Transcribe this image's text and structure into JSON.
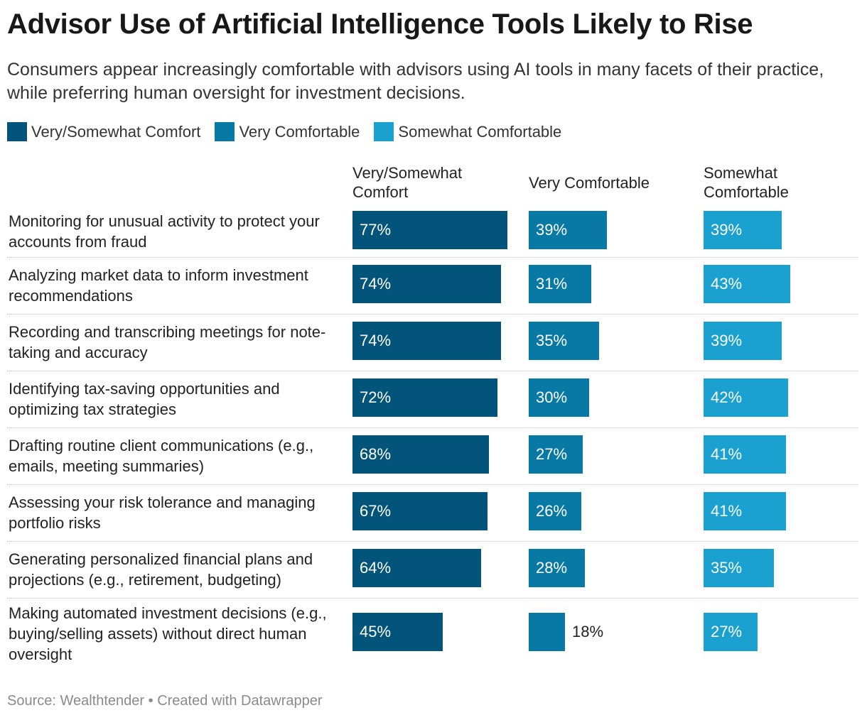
{
  "header": {
    "title": "Advisor Use of Artificial Intelligence Tools Likely to Rise",
    "subtitle": "Consumers appear increasingly comfortable with advisors using AI tools in many facets of their practice, while preferring human oversight for investment decisions."
  },
  "legend": [
    {
      "label": "Very/Somewhat Comfort",
      "color": "#03547a"
    },
    {
      "label": "Very Comfortable",
      "color": "#0878a4"
    },
    {
      "label": "Somewhat Comfortable",
      "color": "#1aa1cf"
    }
  ],
  "footer": {
    "source": "Source: Wealthtender • Created with Datawrapper"
  },
  "chart_data": {
    "type": "bar",
    "orientation": "horizontal",
    "layout": "split-columns",
    "title": "Advisor Use of Artificial Intelligence Tools Likely to Rise",
    "value_suffix": "%",
    "xlim": [
      0,
      100
    ],
    "categories": [
      "Monitoring for unusual activity to protect your accounts from fraud",
      "Analyzing market data to inform investment recommendations",
      "Recording and transcribing meetings for note-taking and accuracy",
      "Identifying tax-saving opportunities and optimizing tax strategies",
      "Drafting routine client communications (e.g., emails, meeting summaries)",
      "Assessing your risk tolerance and managing portfolio risks",
      "Generating personalized financial plans and projections (e.g., retirement, budgeting)",
      "Making automated investment decisions (e.g., buying/selling assets) without direct human oversight"
    ],
    "series": [
      {
        "name": "Very/Somewhat Comfort",
        "header": "Very/Somewhat Comfort",
        "color": "#03547a",
        "values": [
          77,
          74,
          74,
          72,
          68,
          67,
          64,
          45
        ]
      },
      {
        "name": "Very Comfortable",
        "header": "Very Comfortable",
        "color": "#0878a4",
        "values": [
          39,
          31,
          35,
          30,
          27,
          26,
          28,
          18
        ]
      },
      {
        "name": "Somewhat Comfortable",
        "header": "Somewhat Comfortable",
        "color": "#1aa1cf",
        "values": [
          39,
          43,
          39,
          42,
          41,
          41,
          35,
          27
        ]
      }
    ]
  }
}
